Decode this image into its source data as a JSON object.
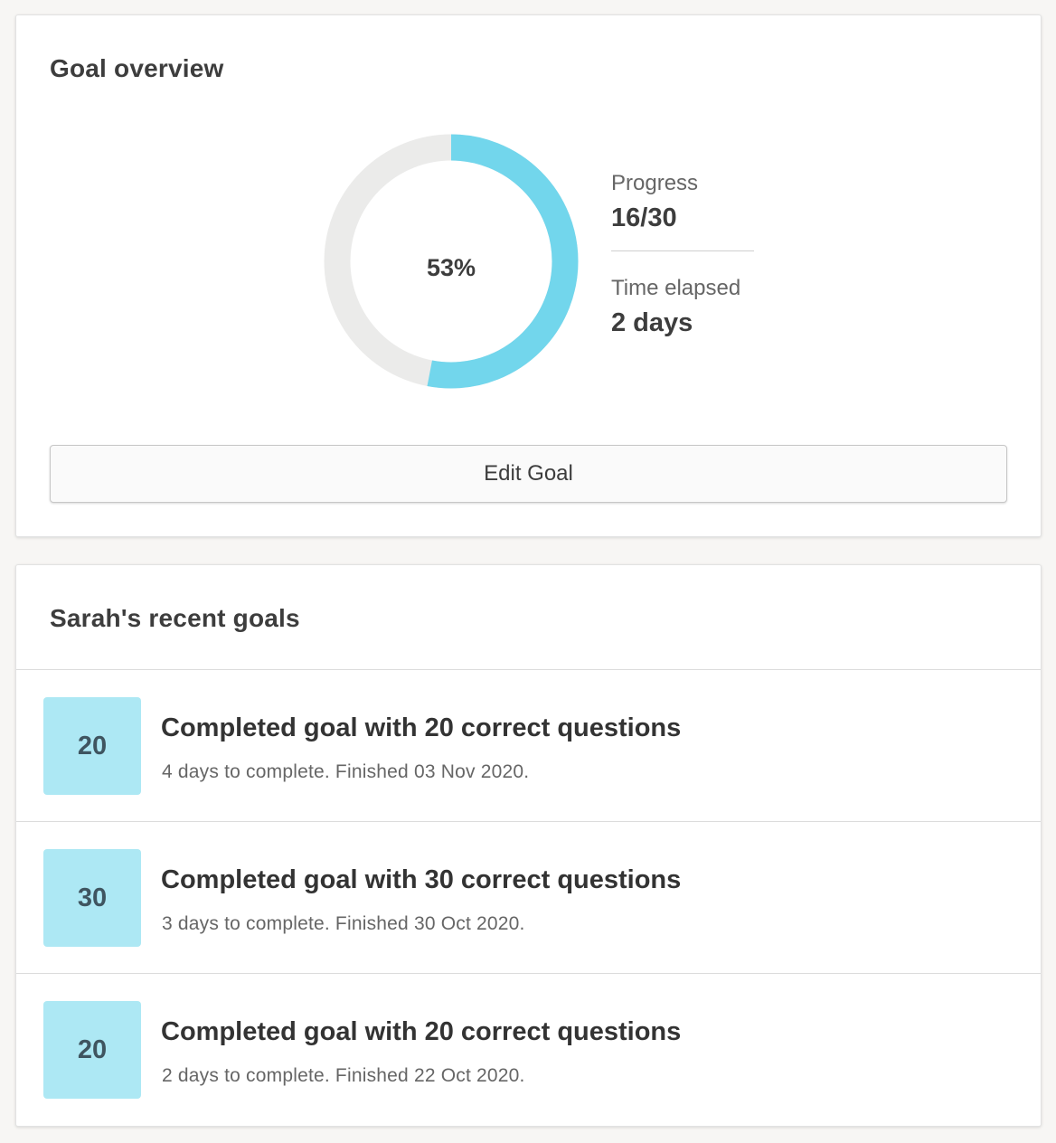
{
  "overview": {
    "title": "Goal overview",
    "percent_label": "53%",
    "percent_value": 53,
    "ring_colors": {
      "fill": "#72d6ec",
      "track": "#ebebea"
    },
    "progress": {
      "label": "Progress",
      "value": "16/30"
    },
    "time_elapsed": {
      "label": "Time elapsed",
      "value": "2 days"
    },
    "edit_button_label": "Edit Goal"
  },
  "recent": {
    "title": "Sarah's recent goals",
    "items": [
      {
        "badge": "20",
        "title": "Completed goal with 20 correct questions",
        "subtitle": "4 days to complete. Finished 03 Nov 2020."
      },
      {
        "badge": "30",
        "title": "Completed goal with 30 correct questions",
        "subtitle": "3 days to complete. Finished 30 Oct 2020."
      },
      {
        "badge": "20",
        "title": "Completed goal with 20 correct questions",
        "subtitle": "2 days to complete. Finished 22 Oct 2020."
      }
    ]
  }
}
